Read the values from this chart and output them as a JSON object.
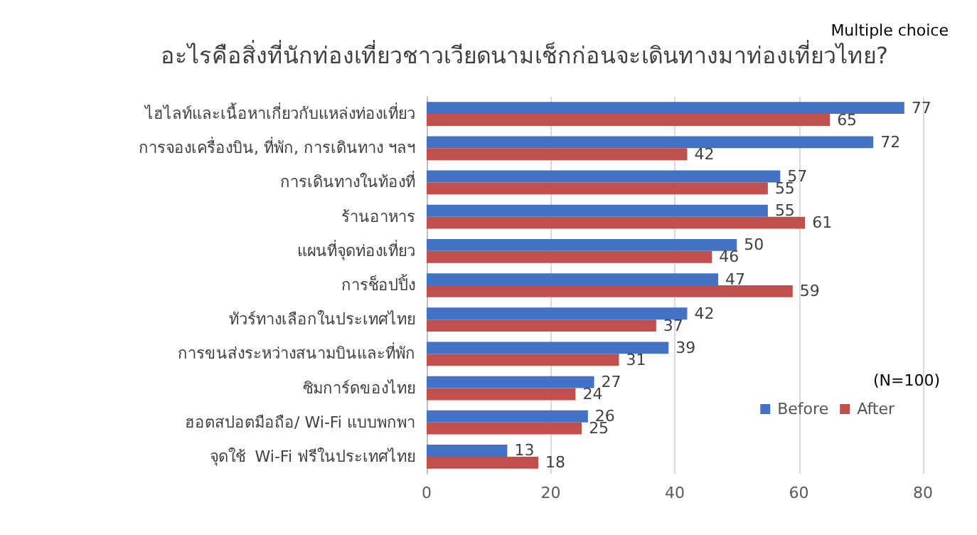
{
  "chart_data": {
    "type": "bar",
    "orientation": "horizontal",
    "title": "อะไรคือสิ่งที่นักท่องเที่ยวชาวเวียดนามเช็กก่อนจะเดินทางมาท่องเที่ยวไทย?",
    "categories": [
      "ไฮไลท์และเนื้อหาเกี่ยวกับแหล่งท่องเที่ยว",
      "การจองเครื่องบิน, ที่พัก, การเดินทาง ฯลฯ",
      "การเดินทางในท้องที่",
      "ร้านอาหาร",
      "แผนที่จุดท่องเที่ยว",
      "การช็อปปิ้ง",
      "ทัวร์ทางเลือกในประเทศไทย",
      "การขนส่งระหว่างสนามบินและที่พัก",
      "ซิมการ์ดของไทย",
      "ฮอตสปอตมือถือ/ Wi-Fi แบบพกพา",
      "จุดใช้  Wi-Fi ฟรีในประเทศไทย"
    ],
    "series": [
      {
        "name": "Before",
        "color": "#4472c4",
        "values": [
          77,
          72,
          57,
          55,
          50,
          47,
          42,
          39,
          27,
          26,
          13
        ]
      },
      {
        "name": "After",
        "color": "#c0504d",
        "values": [
          65,
          42,
          55,
          61,
          46,
          59,
          37,
          31,
          24,
          25,
          18
        ]
      }
    ],
    "xlim": [
      0,
      80
    ],
    "xticks": [
      0,
      20,
      40,
      60,
      80
    ],
    "grid": "x",
    "legend": "bottom right",
    "data_labels": true,
    "annotations": [
      "Multiple choice",
      "(N=100)"
    ]
  }
}
